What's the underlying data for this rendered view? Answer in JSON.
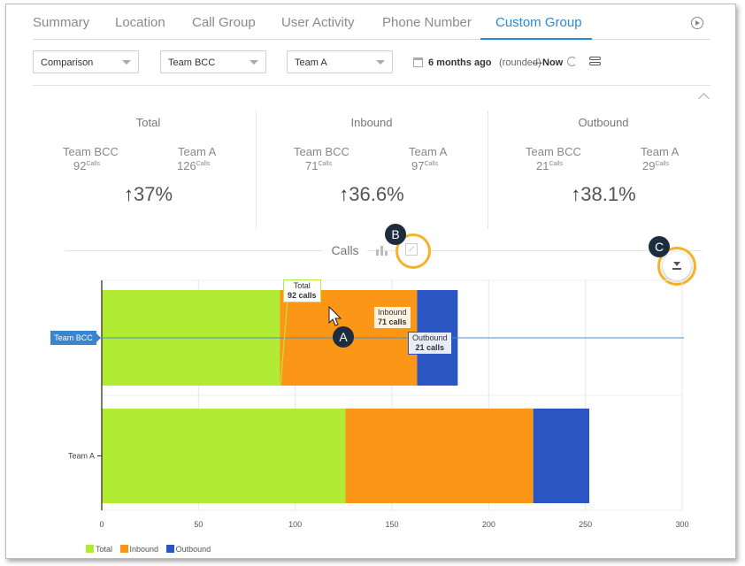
{
  "tabs": [
    {
      "label": "Summary",
      "active": false
    },
    {
      "label": "Location",
      "active": false
    },
    {
      "label": "Call Group",
      "active": false
    },
    {
      "label": "User Activity",
      "active": false
    },
    {
      "label": "Phone Number",
      "active": false
    },
    {
      "label": "Custom Group",
      "active": true
    }
  ],
  "filters": {
    "mode": "Comparison",
    "group_a": "Team BCC",
    "group_b": "Team A",
    "date_from": "6 months ago",
    "date_note": "(rounded)",
    "date_dash": "—",
    "date_to": "Now"
  },
  "summary": [
    {
      "title": "Total",
      "team1": "Team BCC",
      "val1": "92",
      "team2": "Team A",
      "val2": "126",
      "unit": "Calls",
      "arrow": "↑",
      "pct": "37%"
    },
    {
      "title": "Inbound",
      "team1": "Team BCC",
      "val1": "71",
      "team2": "Team A",
      "val2": "97",
      "unit": "Calls",
      "arrow": "↑",
      "pct": "36.6%"
    },
    {
      "title": "Outbound",
      "team1": "Team BCC",
      "val1": "21",
      "team2": "Team A",
      "val2": "29",
      "unit": "Calls",
      "arrow": "↑",
      "pct": "38.1%"
    }
  ],
  "chart_header": {
    "label": "Calls"
  },
  "callouts": {
    "a": "A",
    "b": "B",
    "c": "C"
  },
  "tooltips": {
    "total": {
      "name": "Total",
      "value": "92 calls"
    },
    "inbound": {
      "name": "Inbound",
      "value": "71 calls"
    },
    "outbound": {
      "name": "Outbound",
      "value": "21 calls"
    }
  },
  "highlight_label": "Team BCC",
  "colors": {
    "total": "#b2eb33",
    "inbound": "#fb9616",
    "outbound": "#2a55c3",
    "accent": "#2a8ad6",
    "callout_ring": "#f5b325"
  },
  "chart_data": {
    "type": "bar",
    "orientation": "horizontal",
    "stacked": true,
    "categories": [
      "Team BCC",
      "Team A"
    ],
    "series": [
      {
        "name": "Total",
        "values": [
          92,
          126
        ]
      },
      {
        "name": "Inbound",
        "values": [
          71,
          97
        ]
      },
      {
        "name": "Outbound",
        "values": [
          21,
          29
        ]
      }
    ],
    "xlim": [
      0,
      300
    ],
    "xticks": [
      "0",
      "50",
      "100",
      "150",
      "200",
      "250",
      "300"
    ],
    "grid": true,
    "legend": "bottom-left"
  }
}
